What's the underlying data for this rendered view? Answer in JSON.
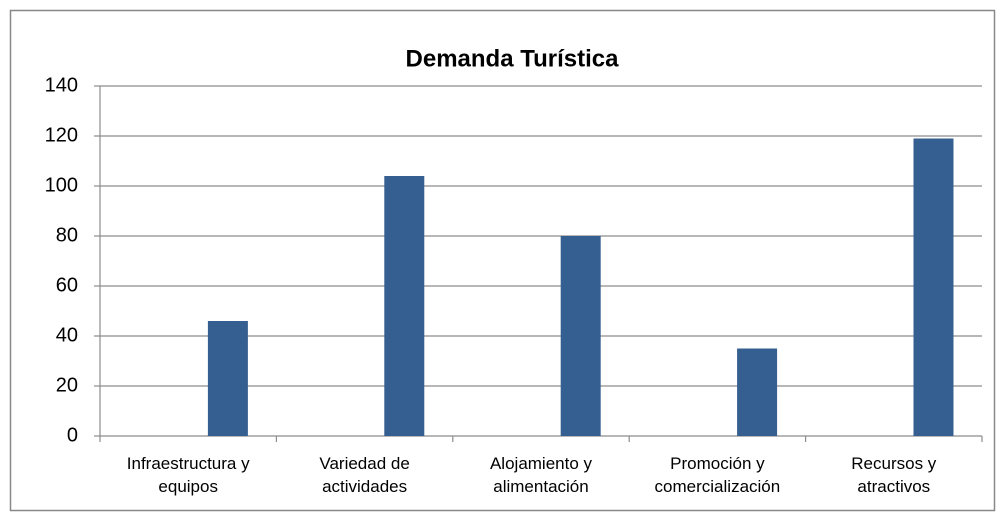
{
  "chart_data": {
    "type": "bar",
    "title": "Demanda Turística",
    "categories": [
      "Infraestructura y equipos",
      "Variedad de actividades",
      "Alojamiento y alimentación",
      "Promoción y comercialización",
      "Recursos y atractivos"
    ],
    "values": [
      46,
      104,
      80,
      35,
      119
    ],
    "color": "#365f91",
    "ylim": [
      0,
      140
    ],
    "yticks": [
      0,
      20,
      40,
      60,
      80,
      100,
      120,
      140
    ],
    "grid": true
  }
}
